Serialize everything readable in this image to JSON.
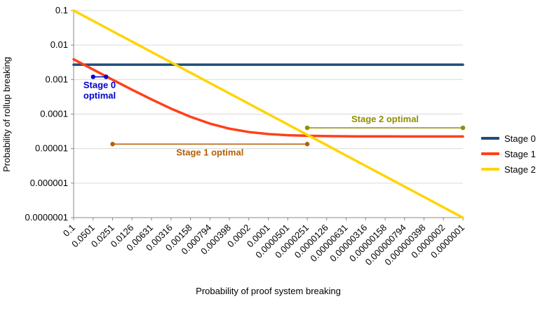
{
  "chart_data": {
    "type": "line",
    "title": "",
    "xlabel": "Probability of proof system breaking",
    "ylabel": "Probability of rollup breaking",
    "x_scale": "log",
    "y_scale": "log",
    "xlim": [
      0.1,
      1e-07
    ],
    "ylim": [
      0.1,
      1e-07
    ],
    "grid": "horizontal",
    "legend_position": "right",
    "background_color": "#ffffff",
    "gridline_color": "#d9d9d9",
    "axis_color": "#888888",
    "x_tick_labels": [
      "0.1",
      "0.0501",
      "0.0251",
      "0.0126",
      "0.00631",
      "0.00316",
      "0.00158",
      "0.000794",
      "0.000398",
      "0.0002",
      "0.0001",
      "0.0000501",
      "0.0000251",
      "0.0000126",
      "0.00000631",
      "0.00000316",
      "0.00000158",
      "0.000000794",
      "0.000000398",
      "0.0000002",
      "0.0000001"
    ],
    "y_tick_labels": [
      "0.1",
      "0.01",
      "0.001",
      "0.0001",
      "0.00001",
      "0.000001",
      "0.0000001"
    ],
    "x": [
      0.1,
      0.0501,
      0.0251,
      0.0126,
      0.00631,
      0.00316,
      0.00158,
      0.000794,
      0.000398,
      0.0002,
      0.0001,
      5.01e-05,
      2.51e-05,
      1.26e-05,
      6.31e-06,
      3.16e-06,
      1.58e-06,
      7.94e-07,
      3.98e-07,
      2e-07,
      1e-07
    ],
    "series": [
      {
        "name": "Stage 0",
        "color": "#1f4e79",
        "values": [
          0.0027,
          0.0027,
          0.0027,
          0.0027,
          0.0027,
          0.0027,
          0.0027,
          0.0027,
          0.0027,
          0.0027,
          0.0027,
          0.0027,
          0.0027,
          0.0027,
          0.0027,
          0.0027,
          0.0027,
          0.0027,
          0.0027,
          0.0027,
          0.0027
        ]
      },
      {
        "name": "Stage 1",
        "color": "#ff4019",
        "values": [
          0.00387,
          0.00195,
          0.00099,
          0.000508,
          0.000266,
          0.000144,
          8.33e-05,
          5.31e-05,
          3.78e-05,
          3.02e-05,
          2.64e-05,
          2.44e-05,
          2.35e-05,
          2.3e-05,
          2.27e-05,
          2.26e-05,
          2.26e-05,
          2.25e-05,
          2.25e-05,
          2.25e-05,
          2.25e-05
        ]
      },
      {
        "name": "Stage 2",
        "color": "#ffd400",
        "values": [
          0.1,
          0.0501,
          0.0251,
          0.0126,
          0.00631,
          0.00316,
          0.00158,
          0.000794,
          0.000398,
          0.0002,
          0.0001,
          5.01e-05,
          2.51e-05,
          1.26e-05,
          6.31e-06,
          3.16e-06,
          1.58e-06,
          7.94e-07,
          3.98e-07,
          2e-07,
          1e-07
        ]
      }
    ],
    "annotations": [
      {
        "id": "stage-0-optimal",
        "label_lines": [
          "Stage 0",
          "optimal"
        ],
        "color": "#0000cd",
        "x_start": 0.0501,
        "x_end": 0.0316,
        "y": 0.0012,
        "label_position": "below"
      },
      {
        "id": "stage-1-optimal",
        "label_lines": [
          "Stage 1 optimal"
        ],
        "color": "#b45f06",
        "x_start": 0.0251,
        "x_end": 2.51e-05,
        "y": 1.35e-05,
        "label_position": "below"
      },
      {
        "id": "stage-2-optimal",
        "label_lines": [
          "Stage 2 optimal"
        ],
        "color": "#8f8f00",
        "x_start": 2.51e-05,
        "x_end": 1e-07,
        "y": 4e-05,
        "label_position": "above"
      }
    ]
  }
}
